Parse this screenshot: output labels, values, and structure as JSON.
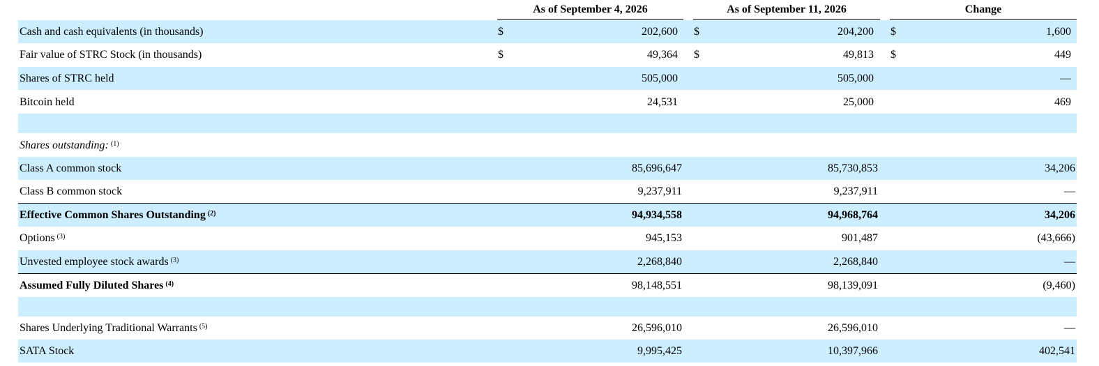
{
  "columns": {
    "col1": "As of September 4, 2026",
    "col2": "As of September 11, 2026",
    "col3": "Change"
  },
  "rows": {
    "cash": {
      "label": "Cash and cash equivalents (in thousands)",
      "cur": "$",
      "v1": "202,600",
      "v2": "204,200",
      "v3": "1,600"
    },
    "fair_value": {
      "label": "Fair value of STRC Stock (in thousands)",
      "cur": "$",
      "v1": "49,364",
      "v2": "49,813",
      "v3": "449"
    },
    "strc_shares": {
      "label": "Shares of STRC held",
      "v1": "505,000",
      "v2": "505,000",
      "v3": "—"
    },
    "bitcoin": {
      "label": "Bitcoin held",
      "v1": "24,531",
      "v2": "25,000",
      "v3": "469"
    },
    "shares_outstanding_header": {
      "label": "Shares outstanding:",
      "note": "(1)"
    },
    "class_a": {
      "label": "Class A common stock",
      "v1": "85,696,647",
      "v2": "85,730,853",
      "v3": "34,206"
    },
    "class_b": {
      "label": "Class B common stock",
      "v1": "9,237,911",
      "v2": "9,237,911",
      "v3": "—"
    },
    "effective": {
      "label": "Effective Common Shares Outstanding",
      "note": "(2)",
      "v1": "94,934,558",
      "v2": "94,968,764",
      "v3": "34,206"
    },
    "options": {
      "label": "Options",
      "note": "(3)",
      "v1": "945,153",
      "v2": "901,487",
      "v3": "(43,666)"
    },
    "unvested": {
      "label": "Unvested employee stock awards",
      "note": "(3)",
      "v1": "2,268,840",
      "v2": "2,268,840",
      "v3": "—"
    },
    "diluted": {
      "label": "Assumed Fully Diluted Shares",
      "note": "(4)",
      "v1": "98,148,551",
      "v2": "98,139,091",
      "v3": "(9,460)"
    },
    "warrants": {
      "label": "Shares Underlying Traditional Warrants",
      "note": "(5)",
      "v1": "26,596,010",
      "v2": "26,596,010",
      "v3": "—"
    },
    "sata": {
      "label": "SATA Stock",
      "v1": "9,995,425",
      "v2": "10,397,966",
      "v3": "402,541"
    }
  },
  "colors": {
    "row_band": "#cceeff",
    "rule": "#000000",
    "text": "#000000"
  }
}
